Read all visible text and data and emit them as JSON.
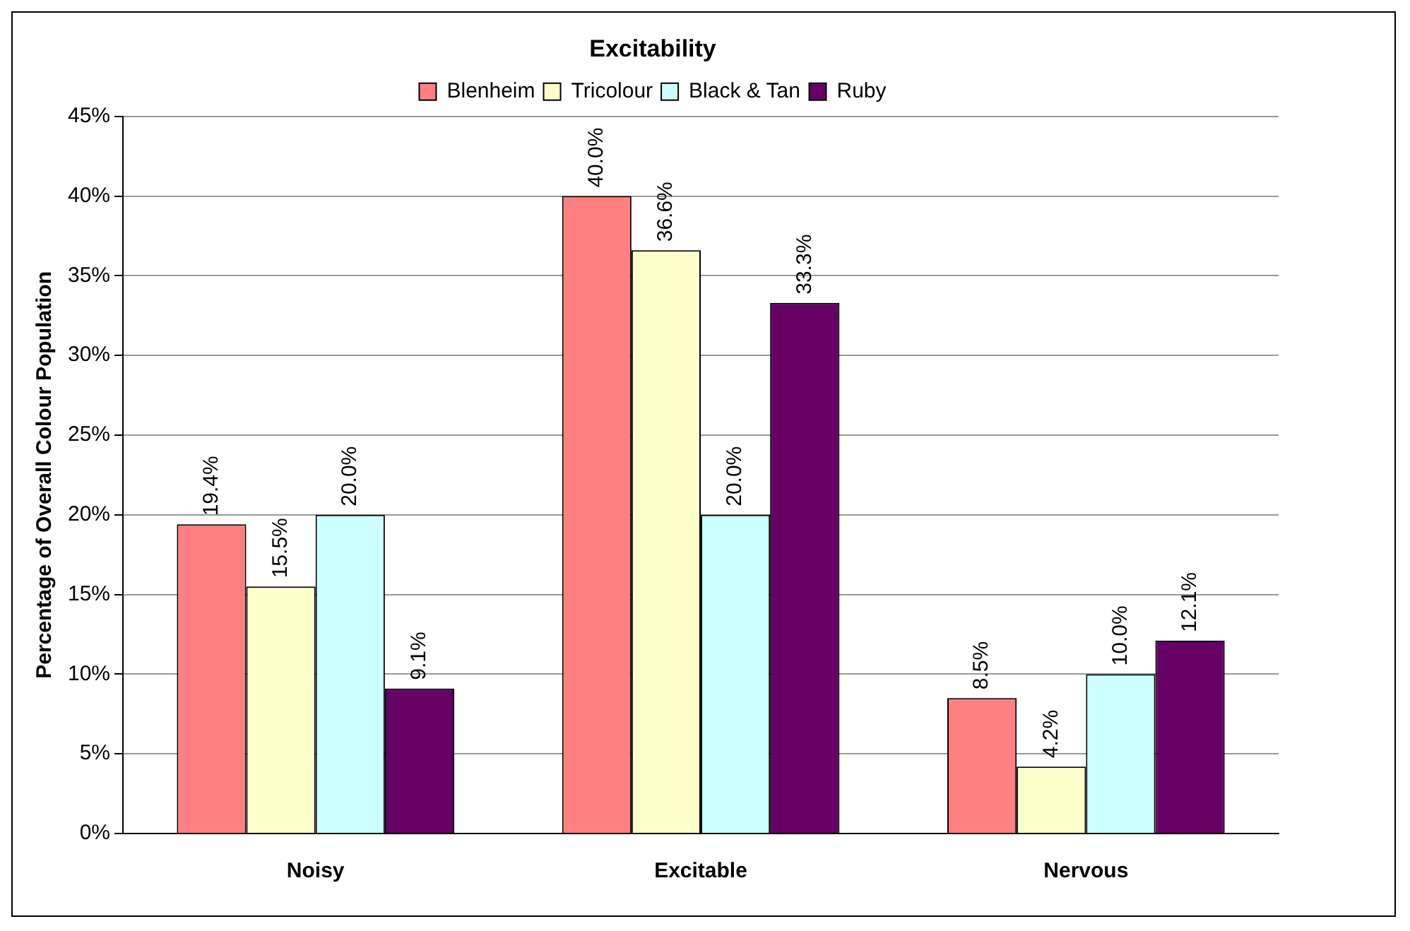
{
  "chart_data": {
    "type": "bar",
    "title": "Excitability",
    "ylabel": "Percentage of Overall Colour Population",
    "categories": [
      "Noisy",
      "Excitable",
      "Nervous"
    ],
    "series": [
      {
        "name": "Blenheim",
        "color": "#ff8080",
        "values": [
          19.4,
          40.0,
          8.5
        ],
        "value_labels": [
          "19.4%",
          "40.0%",
          "8.5%"
        ]
      },
      {
        "name": "Tricolour",
        "color": "#ffffcc",
        "values": [
          15.5,
          36.6,
          4.2
        ],
        "value_labels": [
          "15.5%",
          "36.6%",
          "4.2%"
        ]
      },
      {
        "name": "Black & Tan",
        "color": "#ccffff",
        "values": [
          20.0,
          20.0,
          10.0
        ],
        "value_labels": [
          "20.0%",
          "20.0%",
          "10.0%"
        ]
      },
      {
        "name": "Ruby",
        "color": "#660066",
        "values": [
          9.1,
          33.3,
          12.1
        ],
        "value_labels": [
          "9.1%",
          "33.3%",
          "12.1%"
        ]
      }
    ],
    "ylim": [
      0,
      45
    ],
    "yticks": [
      {
        "value": 0,
        "label": "0%"
      },
      {
        "value": 5,
        "label": "5%"
      },
      {
        "value": 10,
        "label": "10%"
      },
      {
        "value": 15,
        "label": "15%"
      },
      {
        "value": 20,
        "label": "20%"
      },
      {
        "value": 25,
        "label": "25%"
      },
      {
        "value": 30,
        "label": "30%"
      },
      {
        "value": 35,
        "label": "35%"
      },
      {
        "value": 40,
        "label": "40%"
      },
      {
        "value": 45,
        "label": "45%"
      }
    ],
    "grid": "y",
    "legend": "top"
  }
}
